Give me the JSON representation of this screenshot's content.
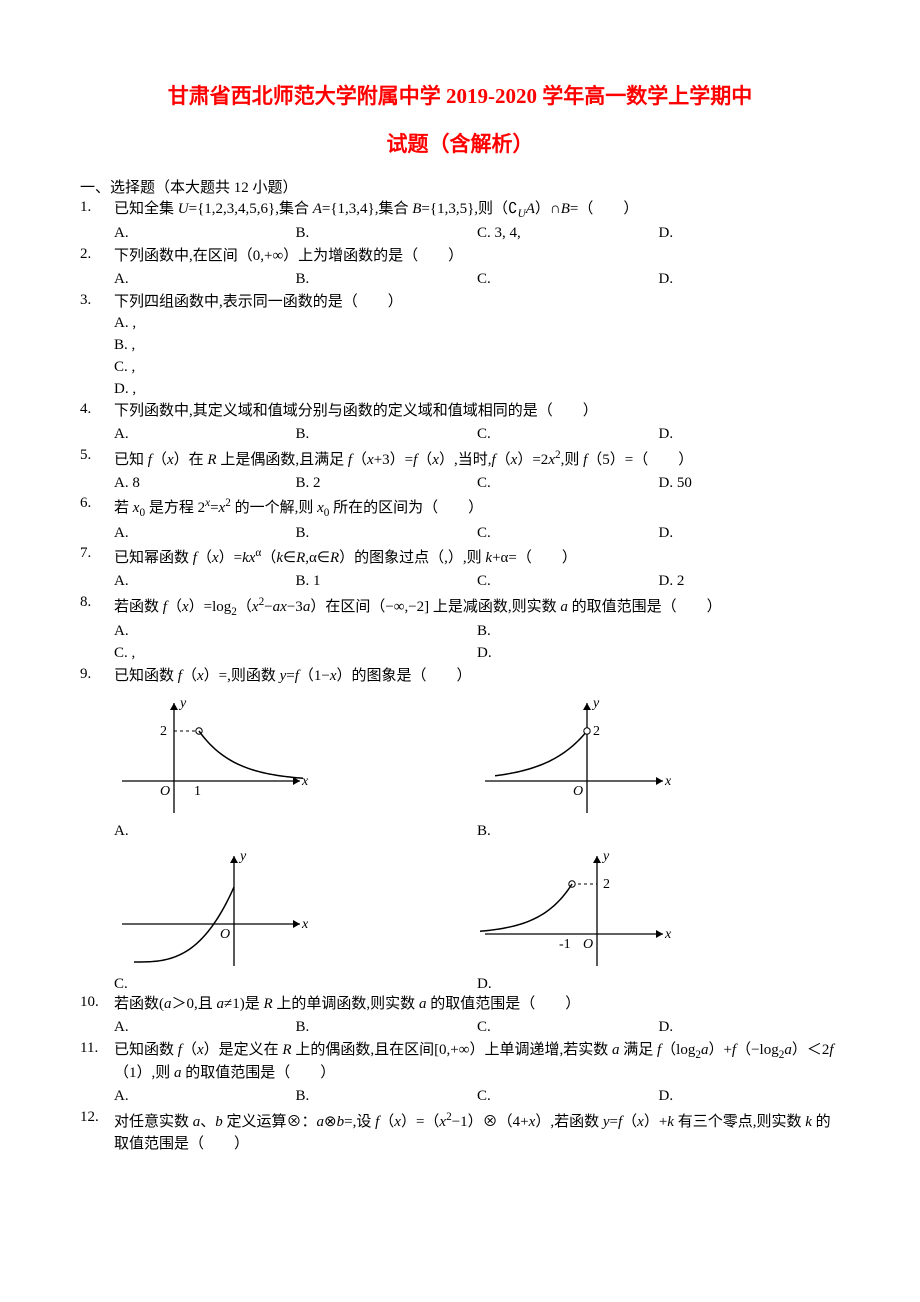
{
  "title_line1": "甘肃省西北师范大学附属中学 2019-2020 学年高一数学上学期中",
  "title_line2": "试题（含解析）",
  "section1_head": "一、选择题（本大题共 12 小题）",
  "questions": [
    {
      "num": "1.",
      "stem_html": "已知全集 <span class='ital'>U</span>={1,2,3,4,5,6},集合 <span class='ital'>A</span>={1,3,4},集合 <span class='ital'>B</span>={1,3,5},则（<span class='comp'>∁</span><sub><span class='ital'>U</span></sub><span class='ital'>A</span>）∩<span class='ital'>B</span>=（　　）",
      "choices_layout": "cols4",
      "choices": [
        {
          "label": "A.",
          "text": ""
        },
        {
          "label": "B.",
          "text": ""
        },
        {
          "label": "C.",
          "text": "3, 4,"
        },
        {
          "label": "D.",
          "text": ""
        }
      ]
    },
    {
      "num": "2.",
      "stem_html": "下列函数中,在区间（0,+∞）上为增函数的是（　　）",
      "choices_layout": "cols4",
      "choices": [
        {
          "label": "A.",
          "text": ""
        },
        {
          "label": "B.",
          "text": ""
        },
        {
          "label": "C.",
          "text": ""
        },
        {
          "label": "D.",
          "text": ""
        }
      ]
    },
    {
      "num": "3.",
      "stem_html": "下列四组函数中,表示同一函数的是（　　）",
      "choices_layout": "cols1",
      "choices": [
        {
          "label": "A.",
          "text": ","
        },
        {
          "label": "B.",
          "text": ","
        },
        {
          "label": "C.",
          "text": ","
        },
        {
          "label": "D.",
          "text": ","
        }
      ]
    },
    {
      "num": "4.",
      "stem_html": "下列函数中,其定义域和值域分别与函数的定义域和值域相同的是（　　）",
      "choices_layout": "cols4",
      "choices": [
        {
          "label": "A.",
          "text": ""
        },
        {
          "label": "B.",
          "text": ""
        },
        {
          "label": "C.",
          "text": ""
        },
        {
          "label": "D.",
          "text": ""
        }
      ]
    },
    {
      "num": "5.",
      "stem_html": "已知 <span class='ital'>f</span>（<span class='ital'>x</span>）在 <span class='ital'>R</span> 上是偶函数,且满足 <span class='ital'>f</span>（<span class='ital'>x</span>+3）=<span class='ital'>f</span>（<span class='ital'>x</span>）,当时,<span class='ital'>f</span>（<span class='ital'>x</span>）=2<span class='ital'>x</span><sup>2</sup>,则 <span class='ital'>f</span>（5）=（　　）",
      "choices_layout": "cols4",
      "choices": [
        {
          "label": "A.",
          "text": "8"
        },
        {
          "label": "B.",
          "text": "2"
        },
        {
          "label": "C.",
          "text": ""
        },
        {
          "label": "D.",
          "text": "50"
        }
      ]
    },
    {
      "num": "6.",
      "stem_html": "若 <span class='ital'>x</span><sub>0</sub> 是方程 2<sup><span class='ital'>x</span></sup>=<span class='ital'>x</span><sup>2</sup> 的一个解,则 <span class='ital'>x</span><sub>0</sub> 所在的区间为（　　）",
      "choices_layout": "cols4",
      "choices": [
        {
          "label": "A.",
          "text": ""
        },
        {
          "label": "B.",
          "text": ""
        },
        {
          "label": "C.",
          "text": ""
        },
        {
          "label": "D.",
          "text": ""
        }
      ]
    },
    {
      "num": "7.",
      "stem_html": "已知幂函数 <span class='ital'>f</span>（<span class='ital'>x</span>）=<span class='ital'>kx</span><sup>α</sup>（<span class='ital'>k</span>∈<span class='ital'>R</span>,α∈<span class='ital'>R</span>）的图象过点（,）,则 <span class='ital'>k</span>+α=（　　）",
      "choices_layout": "cols4",
      "choices": [
        {
          "label": "A.",
          "text": ""
        },
        {
          "label": "B.",
          "text": "1"
        },
        {
          "label": "C.",
          "text": ""
        },
        {
          "label": "D.",
          "text": "2"
        }
      ]
    },
    {
      "num": "8.",
      "stem_html": "若函数 <span class='ital'>f</span>（<span class='ital'>x</span>）=log<sub>2</sub>（<span class='ital'>x</span><sup>2</sup>−<span class='ital'>ax</span>−3<span class='ital'>a</span>）在区间（−∞,−2] 上是减函数,则实数 <span class='ital'>a</span> 的取值范围是（　　）",
      "choices_layout": "cols2",
      "choices": [
        {
          "label": "A.",
          "text": ""
        },
        {
          "label": "B.",
          "text": ""
        },
        {
          "label": "C.",
          "text": ","
        },
        {
          "label": "D.",
          "text": ""
        }
      ]
    },
    {
      "num": "9.",
      "stem_html": "已知函数 <span class='ital'>f</span>（<span class='ital'>x</span>）=,则函数 <span class='ital'>y</span>=<span class='ital'>f</span>（1−<span class='ital'>x</span>）的图象是（　　）",
      "figure": true,
      "fig_labels": [
        "A.",
        "B.",
        "C.",
        "D."
      ],
      "axis": {
        "x": "x",
        "y": "y",
        "origin": "O"
      },
      "fig_data": {
        "A": {
          "y_tick": "2",
          "x_tick": "1",
          "curve": "hyp_right"
        },
        "B": {
          "y_tick": "2",
          "curve": "hyp_left"
        },
        "C": {
          "curve": "exp_left"
        },
        "D": {
          "y_tick": "2",
          "x_tick": "-1",
          "curve": "hyp_decay_left"
        }
      }
    },
    {
      "num": "10.",
      "stem_html": "若函数(<span class='ital'>a</span>＞0,且 <span class='ital'>a</span>≠1)是 <span class='ital'>R</span> 上的单调函数,则实数 <span class='ital'>a</span> 的取值范围是（　　）",
      "choices_layout": "cols4",
      "choices": [
        {
          "label": "A.",
          "text": ""
        },
        {
          "label": "B.",
          "text": ""
        },
        {
          "label": "C.",
          "text": ""
        },
        {
          "label": "D.",
          "text": ""
        }
      ]
    },
    {
      "num": "11.",
      "stem_html": "已知函数 <span class='ital'>f</span>（<span class='ital'>x</span>）是定义在 <span class='ital'>R</span> 上的偶函数,且在区间[0,+∞）上单调递增,若实数 <span class='ital'>a</span> 满足 <span class='ital'>f</span>（log<sub>2</sub><span class='ital'>a</span>）+<span class='ital'>f</span>（−log<sub>2</sub><span class='ital'>a</span>）＜2<span class='ital'>f</span>（1）,则 <span class='ital'>a</span> 的取值范围是（　　）",
      "choices_layout": "cols4",
      "choices": [
        {
          "label": "A.",
          "text": ""
        },
        {
          "label": "B.",
          "text": ""
        },
        {
          "label": "C.",
          "text": ""
        },
        {
          "label": "D.",
          "text": ""
        }
      ]
    },
    {
      "num": "12.",
      "stem_html": "对任意实数 <span class='ital'>a</span>、<span class='ital'>b</span> 定义运算⊗：<span class='ital'>a</span>⊗<span class='ital'>b</span>=,设 <span class='ital'>f</span>（<span class='ital'>x</span>）=（<span class='ital'>x</span><sup>2</sup>−1）⊗（4+<span class='ital'>x</span>）,若函数 <span class='ital'>y</span>=<span class='ital'>f</span>（<span class='ital'>x</span>）+<span class='ital'>k</span> 有三个零点,则实数 <span class='ital'>k</span> 的取值范围是（　　）"
    }
  ],
  "svg_colors": {
    "axis": "#000000",
    "curve": "#000000",
    "text": "#000000"
  }
}
